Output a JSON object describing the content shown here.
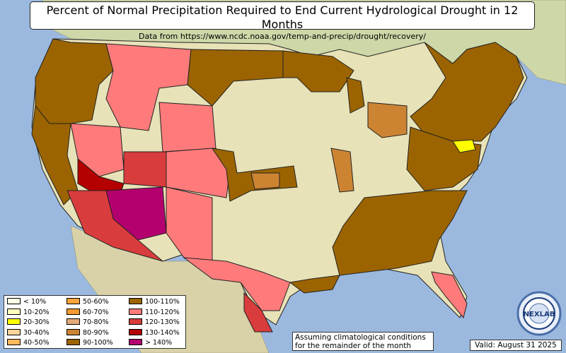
{
  "title": "Percent of Normal Precipitation Required to End Current Hydrological Drought in 12 Months",
  "subtitle": "Data from https://www.ncdc.noaa.gov/temp-and-precip/drought/recovery/",
  "note": "Assuming climatological conditions for the remainder of the month",
  "valid": "Valid: August 31 2025",
  "logo_text": "NEXLAB",
  "colors": {
    "ocean": "#9bb9df",
    "land": "#e8e2b8",
    "border": "#222222"
  },
  "legend": [
    {
      "label": "< 10%",
      "color": "#ffffe6"
    },
    {
      "label": "10-20%",
      "color": "#ffffbe"
    },
    {
      "label": "20-30%",
      "color": "#ffff00"
    },
    {
      "label": "30-40%",
      "color": "#ffd49b"
    },
    {
      "label": "40-50%",
      "color": "#ffb85a"
    },
    {
      "label": "50-60%",
      "color": "#fca43c"
    },
    {
      "label": "60-70%",
      "color": "#f39a33"
    },
    {
      "label": "70-80%",
      "color": "#e3ab7a"
    },
    {
      "label": "80-90%",
      "color": "#cc8433"
    },
    {
      "label": "90-100%",
      "color": "#9b6400"
    },
    {
      "label": "100-110%",
      "color": "#9b6400"
    },
    {
      "label": "110-120%",
      "color": "#ff7b7b"
    },
    {
      "label": "120-130%",
      "color": "#d93c3c"
    },
    {
      "label": "130-140%",
      "color": "#b40000"
    },
    {
      "label": "> 140%",
      "color": "#b4006e"
    }
  ],
  "regions": [
    {
      "name": "pacific-northwest",
      "category": "100-110%",
      "color": "#9b6400"
    },
    {
      "name": "northern-rockies",
      "category": "110-120%",
      "color": "#ff7b7b"
    },
    {
      "name": "northern-plains",
      "category": "100-110%",
      "color": "#9b6400"
    },
    {
      "name": "great-basin",
      "category": "110-120%",
      "color": "#ff7b7b"
    },
    {
      "name": "california",
      "category": "100-110%",
      "color": "#9b6400"
    },
    {
      "name": "southern-nevada",
      "category": "130-140%",
      "color": "#b40000"
    },
    {
      "name": "four-corners",
      "category": "> 140%",
      "color": "#b4006e"
    },
    {
      "name": "arizona-south",
      "category": "120-130%",
      "color": "#d93c3c"
    },
    {
      "name": "new-mexico",
      "category": "110-120%",
      "color": "#ff7b7b"
    },
    {
      "name": "central-plains",
      "category": "100-110%",
      "color": "#9b6400"
    },
    {
      "name": "texas-west",
      "category": "110-120%",
      "color": "#ff7b7b"
    },
    {
      "name": "southeast",
      "category": "100-110%",
      "color": "#9b6400"
    },
    {
      "name": "florida",
      "category": "110-120%",
      "color": "#ff7b7b"
    },
    {
      "name": "northeast",
      "category": "100-110%",
      "color": "#9b6400"
    },
    {
      "name": "ohio-valley",
      "category": "80-90%",
      "color": "#cc8433"
    },
    {
      "name": "maryland",
      "category": "20-30%",
      "color": "#ffff00"
    }
  ]
}
